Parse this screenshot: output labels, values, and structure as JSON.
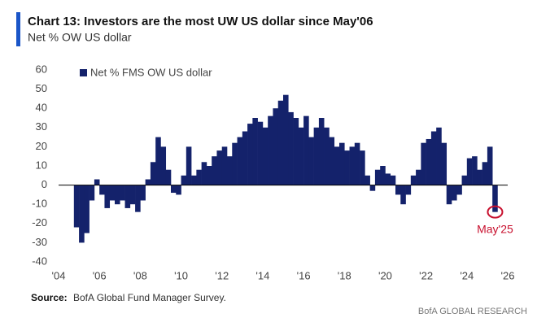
{
  "chart_data": {
    "type": "bar",
    "title": "Chart 13: Investors are the most UW US dollar since May'06",
    "subtitle": "Net % OW US dollar",
    "source_label": "Source:",
    "source": "BofA Global Fund Manager Survey.",
    "brand": "BofA GLOBAL RESEARCH",
    "annotation": "May'25",
    "legend_position": "upper left",
    "series": [
      {
        "name": "Net % FMS OW US dollar",
        "color": "#14226b",
        "x": [
          2004.75,
          2005,
          2005.25,
          2005.5,
          2005.75,
          2006,
          2006.25,
          2006.5,
          2006.75,
          2007,
          2007.25,
          2007.5,
          2007.75,
          2008,
          2008.25,
          2008.5,
          2008.75,
          2009,
          2009.25,
          2009.5,
          2009.75,
          2010,
          2010.25,
          2010.5,
          2010.75,
          2011,
          2011.25,
          2011.5,
          2011.75,
          2012,
          2012.25,
          2012.5,
          2012.75,
          2013,
          2013.25,
          2013.5,
          2013.75,
          2014,
          2014.25,
          2014.5,
          2014.75,
          2015,
          2015.25,
          2015.5,
          2015.75,
          2016,
          2016.25,
          2016.5,
          2016.75,
          2017,
          2017.25,
          2017.5,
          2017.75,
          2018,
          2018.25,
          2018.5,
          2018.75,
          2019,
          2019.25,
          2019.5,
          2019.75,
          2020,
          2020.25,
          2020.5,
          2020.75,
          2021,
          2021.25,
          2021.5,
          2021.75,
          2022,
          2022.25,
          2022.5,
          2022.75,
          2023,
          2023.25,
          2023.5,
          2023.75,
          2024,
          2024.25,
          2024.5,
          2024.75,
          2025,
          2025.25
        ],
        "values": [
          -22,
          -30,
          -25,
          -8,
          3,
          -5,
          -12,
          -8,
          -10,
          -8,
          -12,
          -10,
          -14,
          -8,
          3,
          12,
          25,
          20,
          8,
          -4,
          -5,
          5,
          20,
          5,
          8,
          12,
          10,
          15,
          18,
          20,
          15,
          22,
          25,
          28,
          32,
          35,
          33,
          30,
          36,
          40,
          44,
          47,
          38,
          35,
          30,
          36,
          25,
          30,
          35,
          30,
          25,
          20,
          22,
          18,
          20,
          22,
          18,
          5,
          -3,
          8,
          10,
          6,
          5,
          -5,
          -10,
          -5,
          5,
          8,
          22,
          24,
          28,
          30,
          22,
          -10,
          -8,
          -5,
          5,
          14,
          15,
          8,
          12,
          20,
          -14
        ]
      }
    ],
    "xlim": [
      2004,
      2026
    ],
    "xticks": [
      {
        "value": 2004,
        "label": "'04"
      },
      {
        "value": 2006,
        "label": "'06"
      },
      {
        "value": 2008,
        "label": "'08"
      },
      {
        "value": 2010,
        "label": "'10"
      },
      {
        "value": 2012,
        "label": "'12"
      },
      {
        "value": 2014,
        "label": "'14"
      },
      {
        "value": 2016,
        "label": "'16"
      },
      {
        "value": 2018,
        "label": "'18"
      },
      {
        "value": 2020,
        "label": "'20"
      },
      {
        "value": 2022,
        "label": "'22"
      },
      {
        "value": 2024,
        "label": "'24"
      },
      {
        "value": 2026,
        "label": "'26"
      }
    ],
    "ylim": [
      -40,
      60
    ],
    "yticks": [
      -40,
      -30,
      -20,
      -10,
      0,
      10,
      20,
      30,
      40,
      50,
      60
    ]
  }
}
